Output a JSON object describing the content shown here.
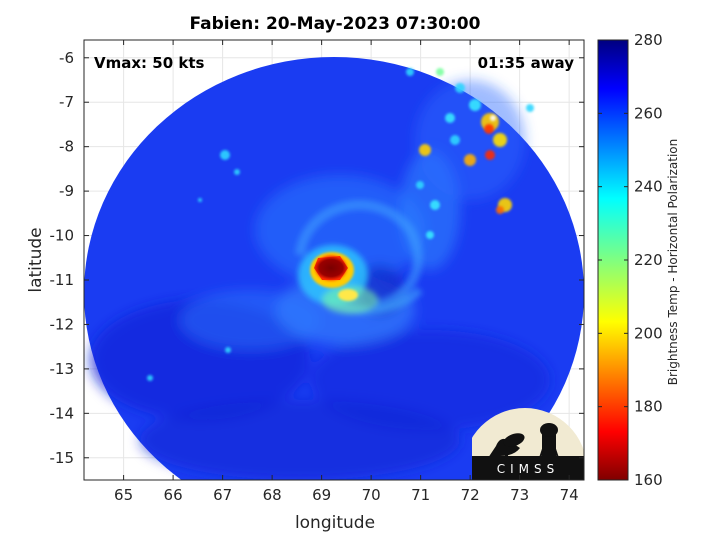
{
  "title": "Fabien: 20-May-2023 07:30:00",
  "annotations": {
    "vmax": "Vmax: 50 kts",
    "time_away": "01:35 away"
  },
  "logo_text": "CIMSS",
  "chart_data": {
    "type": "heatmap",
    "xlabel": "longitude",
    "ylabel": "latitude",
    "xlim": [
      64.2,
      74.3
    ],
    "ylim": [
      -15.5,
      -5.6
    ],
    "xticks": [
      65,
      66,
      67,
      68,
      69,
      70,
      71,
      72,
      73,
      74
    ],
    "yticks": [
      -6,
      -7,
      -8,
      -9,
      -10,
      -11,
      -12,
      -13,
      -14,
      -15
    ],
    "grid": true,
    "colorbar": {
      "label": "Brightness Temp - Horizontal Polarization",
      "range": [
        160,
        280
      ],
      "ticks": [
        160,
        180,
        200,
        220,
        240,
        260,
        280
      ],
      "colormap": "jet"
    },
    "storm_center": {
      "lon": 69.1,
      "lat": -10.7,
      "min_temp": 160
    }
  }
}
